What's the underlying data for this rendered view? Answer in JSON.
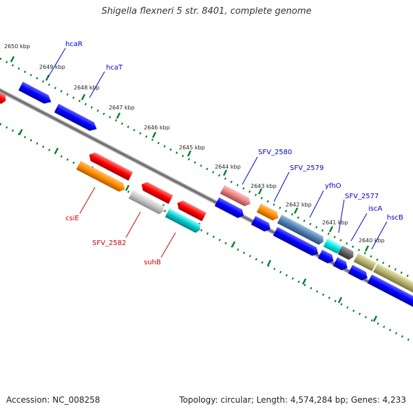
{
  "title": "Shigella flexneri 5 str. 8401, complete genome",
  "footer": {
    "accession": "Accession: NC_008258",
    "topology": "Topology: circular; Length: 4,574,284 bp; Genes: 4,233"
  },
  "kbp_ticks": [
    "2650 kbp",
    "2649 kbp",
    "2648 kbp",
    "2647 kbp",
    "2646 kbp",
    "2645 kbp",
    "2644 kbp",
    "2643 kbp",
    "2642 kbp",
    "2641 kbp",
    "2640 kbp"
  ],
  "gene_labels_upper": [
    "hcaR",
    "hcaT",
    "SFV_2580",
    "SFV_2579",
    "yfhO",
    "SFV_2577",
    "iscA",
    "hscB"
  ],
  "gene_labels_lower": [
    "csiE",
    "SFV_2582",
    "suhB"
  ],
  "colors": {
    "title_text": "#333333",
    "label_blue": "#0000cc",
    "label_red": "#cc0000",
    "backbone": "#808080",
    "tick_green": "#00802b",
    "gene_red": "#ff0000",
    "gene_blue": "#0000ff",
    "gene_orange": "#ff8c00",
    "gene_grey": "#c0c0c0",
    "gene_cyan": "#00c8c8",
    "gene_pink": "#e88080",
    "gene_steelblue": "#4f7fb0",
    "gene_lightcyan": "#00e6e6",
    "gene_darkgrey": "#606060",
    "gene_olive": "#b4b06c"
  }
}
